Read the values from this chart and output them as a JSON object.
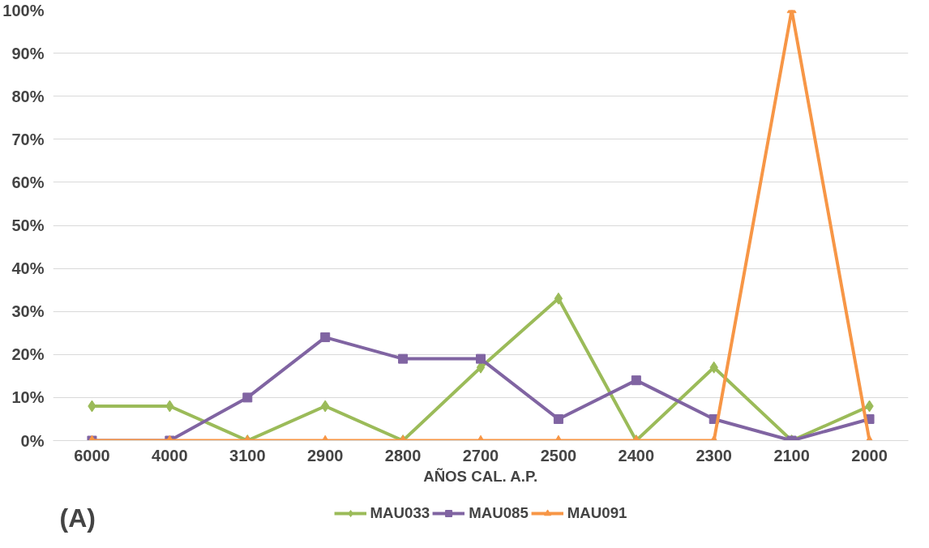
{
  "chart_data": {
    "type": "line",
    "xlabel": "AÑOS CAL. A.P.",
    "categories": [
      "6000",
      "4000",
      "3100",
      "2900",
      "2800",
      "2700",
      "2500",
      "2400",
      "2300",
      "2100",
      "2000"
    ],
    "series": [
      {
        "name": "MAU033",
        "color": "#9bbb59",
        "marker": "diamond",
        "values": [
          8,
          8,
          0,
          8,
          0,
          17,
          33,
          0,
          17,
          0,
          8
        ]
      },
      {
        "name": "MAU085",
        "color": "#8064a2",
        "marker": "square",
        "values": [
          0,
          0,
          10,
          24,
          19,
          19,
          5,
          14,
          5,
          0,
          5
        ]
      },
      {
        "name": "MAU091",
        "color": "#f79646",
        "marker": "triangle",
        "values": [
          0,
          0,
          0,
          0,
          0,
          0,
          0,
          0,
          0,
          100,
          0
        ]
      }
    ],
    "ylim": [
      0,
      100
    ],
    "yticks": [
      {
        "value": 0,
        "label": "0%"
      },
      {
        "value": 10,
        "label": "10%"
      },
      {
        "value": 20,
        "label": "20%"
      },
      {
        "value": 30,
        "label": "30%"
      },
      {
        "value": 40,
        "label": "40%"
      },
      {
        "value": 50,
        "label": "50%"
      },
      {
        "value": 60,
        "label": "60%"
      },
      {
        "value": 70,
        "label": "70%"
      },
      {
        "value": 80,
        "label": "80%"
      },
      {
        "value": 90,
        "label": "90%"
      },
      {
        "value": 100,
        "label": "100%"
      }
    ],
    "grid": "y",
    "legend": "bottom",
    "line_style": "solid",
    "annotations": [
      "(A)"
    ]
  }
}
